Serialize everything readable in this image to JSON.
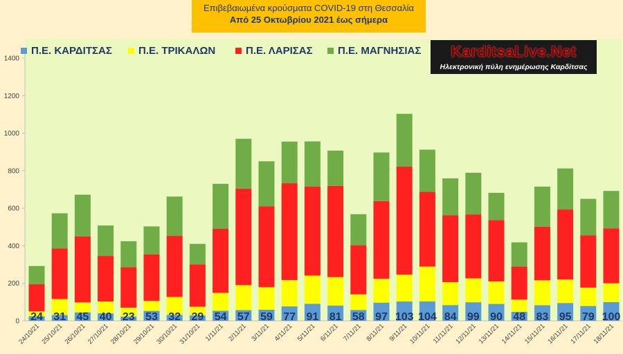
{
  "title": {
    "line1": "Επιβεβαιωμένα κρούσματα COVID-19 στη Θεσσαλία",
    "line2": "Από 25 Οκτωβρίου 2021 έως σήμερα"
  },
  "logo": {
    "brand": "KarditsaLive.Net",
    "tagline": "Ηλεκτρονική πύλη ενημέρωσης Καρδίτσας"
  },
  "colors": {
    "kardits": "#5b9bd5",
    "trikala": "#ffff00",
    "larisa": "#ff2020",
    "magnisia": "#70ad47",
    "label": "#1f3864"
  },
  "chart_data": {
    "type": "bar",
    "stacked": true,
    "categories": [
      "24/10/21",
      "25/10/21",
      "26/10/21",
      "27/10/21",
      "28/10/21",
      "29/10/21",
      "30/10/21",
      "31/10/21",
      "1/11/21",
      "2/11/21",
      "3/11/21",
      "4/11/21",
      "5/11/21",
      "6/11/21",
      "7/11/21",
      "8/11/21",
      "9/11/21",
      "10/11/21",
      "11/11/21",
      "12/11/21",
      "13/11/21",
      "14/11/21",
      "15/11/21",
      "16/11/21",
      "17/11/21",
      "18/11/21"
    ],
    "series": [
      {
        "name": "Π.Ε. ΚΑΡΔΙΤΣΑΣ",
        "color": "#5b9bd5",
        "values": [
          24,
          31,
          45,
          40,
          23,
          53,
          32,
          29,
          54,
          57,
          59,
          77,
          91,
          81,
          58,
          97,
          103,
          104,
          84,
          99,
          90,
          48,
          83,
          95,
          79,
          100
        ]
      },
      {
        "name": "Π.Ε. ΤΡΙΚΑΛΩΝ",
        "color": "#ffff00",
        "values": [
          26,
          85,
          53,
          63,
          47,
          53,
          95,
          46,
          95,
          133,
          120,
          140,
          150,
          152,
          83,
          127,
          143,
          185,
          122,
          127,
          120,
          65,
          133,
          125,
          98,
          100
        ]
      },
      {
        "name": "Π.Ε. ΛΑΡΙΣΑΣ",
        "color": "#ff2020",
        "values": [
          145,
          270,
          352,
          243,
          216,
          248,
          326,
          226,
          341,
          514,
          431,
          516,
          475,
          486,
          262,
          414,
          576,
          398,
          357,
          341,
          327,
          177,
          286,
          373,
          279,
          293
        ]
      },
      {
        "name": "Π.Ε. ΜΑΓΝΗΣΙΑΣ",
        "color": "#70ad47",
        "values": [
          97,
          187,
          222,
          162,
          138,
          149,
          209,
          109,
          240,
          266,
          240,
          222,
          240,
          188,
          165,
          259,
          281,
          225,
          196,
          222,
          145,
          128,
          213,
          219,
          194,
          199
        ]
      }
    ],
    "data_labels": [
      24,
      31,
      45,
      40,
      23,
      53,
      32,
      29,
      54,
      57,
      59,
      77,
      91,
      81,
      58,
      97,
      103,
      104,
      84,
      99,
      90,
      48,
      83,
      95,
      79,
      100
    ],
    "ylim": [
      0,
      1400
    ],
    "yticks": [
      0,
      200,
      400,
      600,
      800,
      1000,
      1200,
      1400
    ],
    "legend_position": "top-left",
    "grid": false
  }
}
